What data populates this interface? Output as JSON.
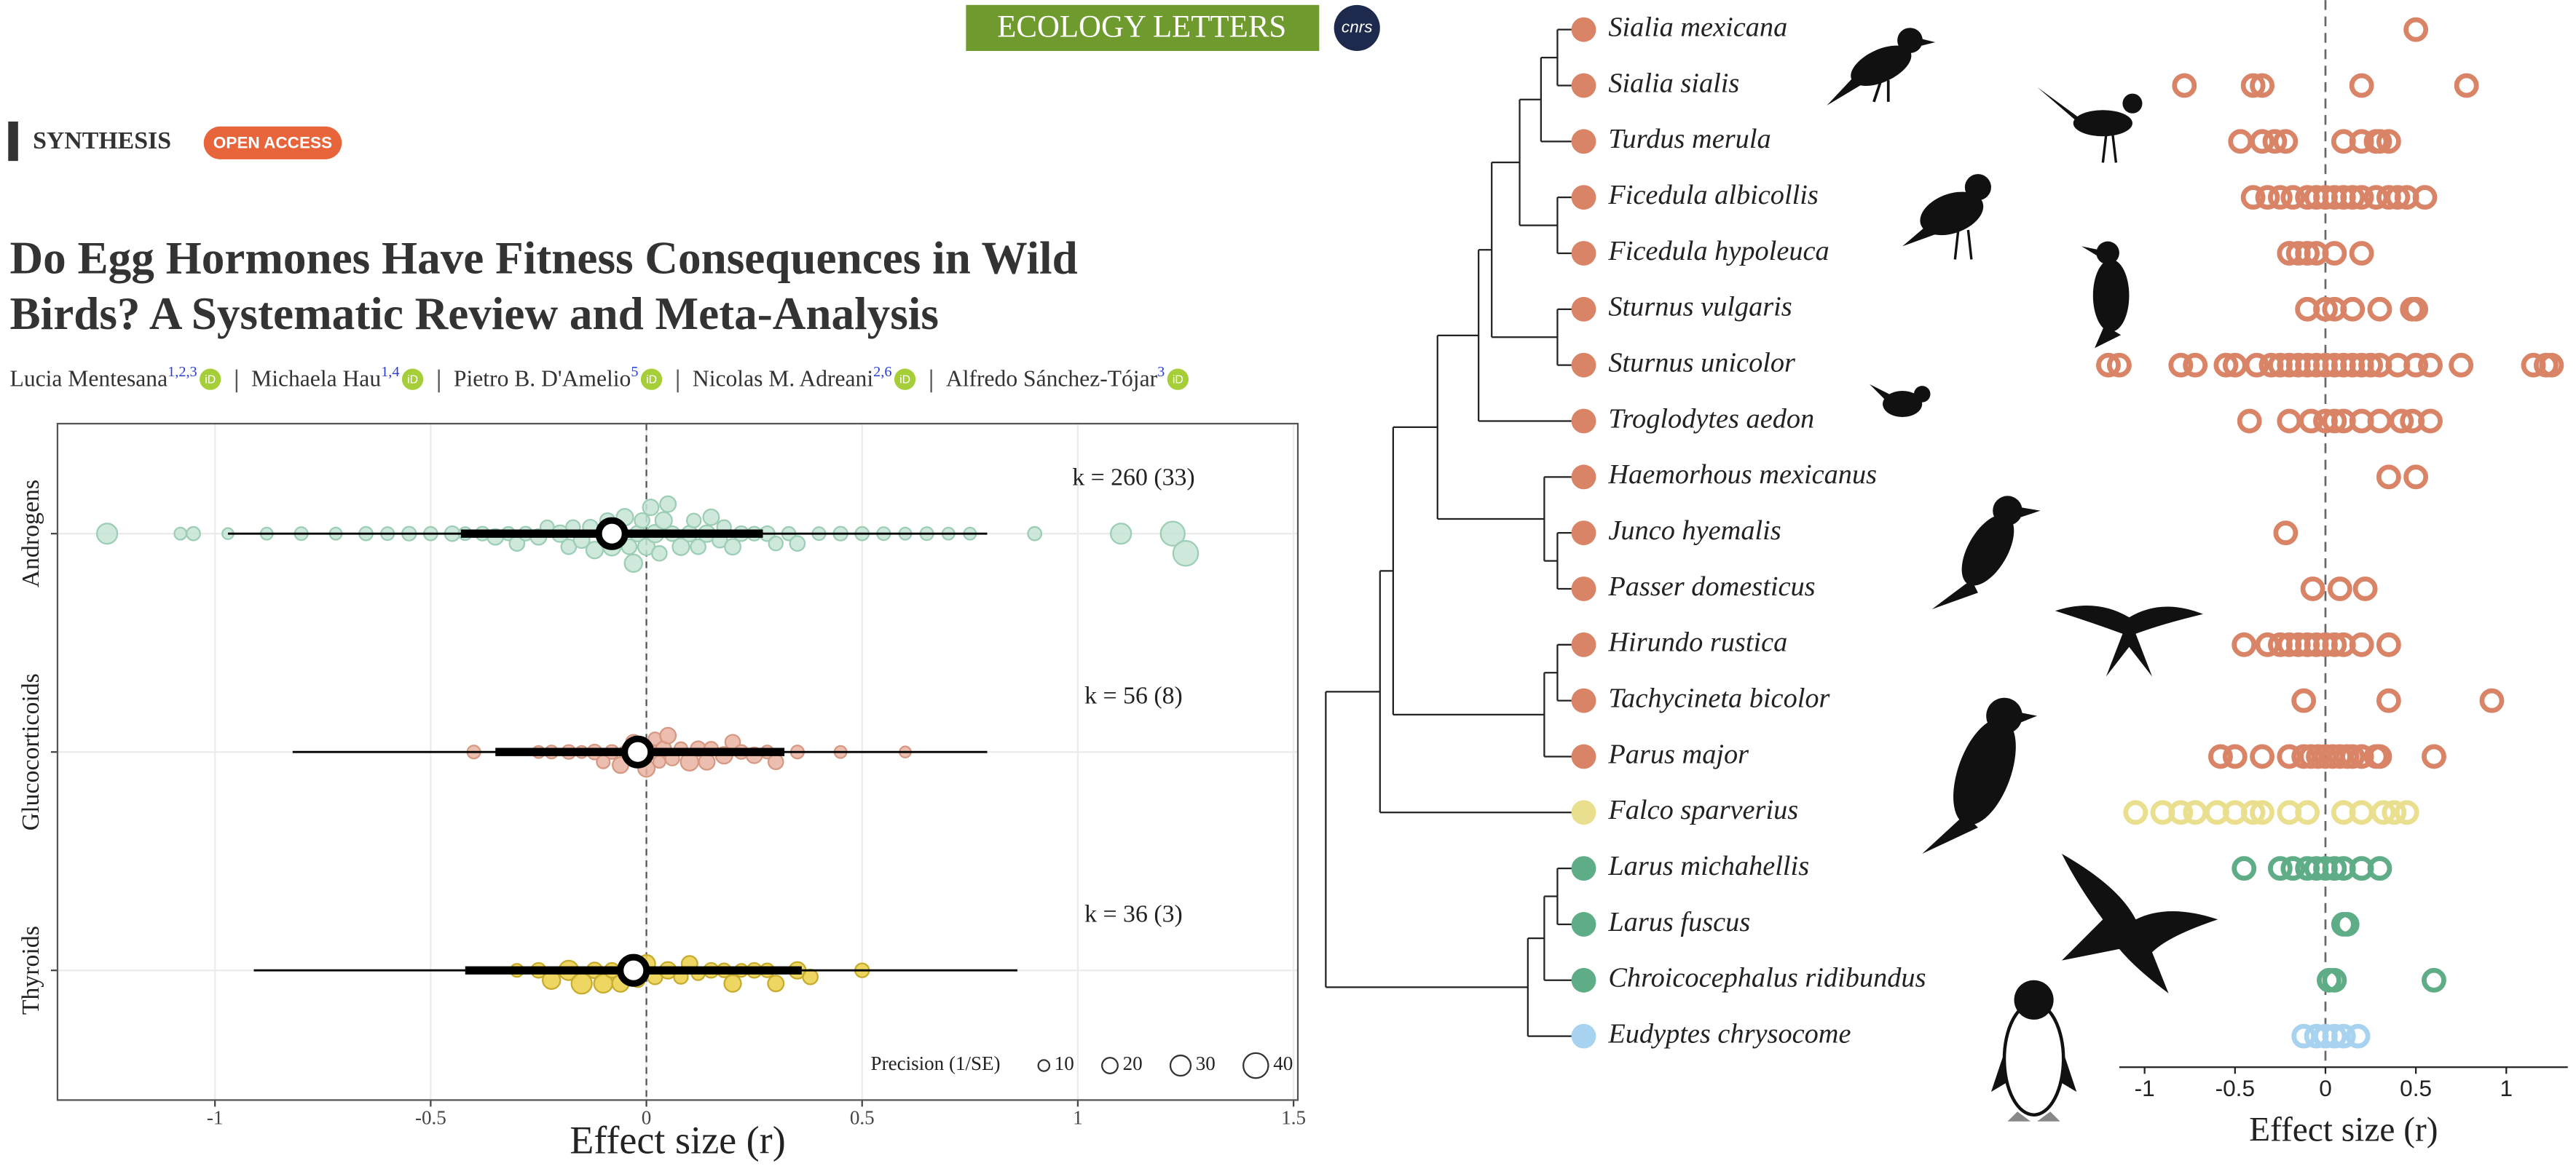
{
  "header": {
    "journal": "ECOLOGY LETTERS",
    "publisher": "cnrs",
    "section": "SYNTHESIS",
    "badge": "OPEN ACCESS",
    "title_lines": [
      "Do Egg Hormones Have Fitness Consequences in Wild",
      "Birds? A Systematic Review and Meta-Analysis"
    ],
    "authors": [
      {
        "name": "Lucia Mentesana",
        "affil": "1,2,3"
      },
      {
        "name": "Michaela Hau",
        "affil": "1,4"
      },
      {
        "name": "Pietro B. D'Amelio",
        "affil": "5"
      },
      {
        "name": "Nicolas M. Adreani",
        "affil": "2,6"
      },
      {
        "name": "Alfredo Sánchez-Tójar",
        "affil": "3"
      }
    ],
    "orcid": "iD"
  },
  "chart_data": [
    {
      "type": "orchard",
      "xlabel": "Effect size (r)",
      "xlim": [
        -1.365,
        1.51
      ],
      "xticks": [
        -1,
        -0.5,
        0,
        0.5,
        1,
        1.5
      ],
      "grid": true,
      "groups": [
        {
          "name": "Androgens",
          "color": "#c6e5d5",
          "stroke": "#9ccdb5",
          "k_label": "k = 260 (33)",
          "mean": -0.08,
          "ci": [
            -0.43,
            0.27
          ],
          "pi": [
            -0.97,
            0.79
          ],
          "x": [
            -1.25,
            -1.08,
            -1.05,
            -0.97,
            -0.88,
            -0.8,
            -0.72,
            -0.65,
            -0.6,
            -0.55,
            -0.5,
            -0.45,
            -0.42,
            -0.38,
            -0.35,
            -0.32,
            -0.3,
            -0.28,
            -0.25,
            -0.23,
            -0.2,
            -0.18,
            -0.17,
            -0.15,
            -0.13,
            -0.12,
            -0.1,
            -0.09,
            -0.08,
            -0.06,
            -0.05,
            -0.04,
            -0.03,
            -0.02,
            -0.01,
            0,
            0.01,
            0.02,
            0.03,
            0.04,
            0.05,
            0.06,
            0.08,
            0.1,
            0.11,
            0.12,
            0.14,
            0.15,
            0.17,
            0.18,
            0.2,
            0.22,
            0.25,
            0.28,
            0.3,
            0.33,
            0.35,
            0.4,
            0.45,
            0.5,
            0.55,
            0.6,
            0.65,
            0.7,
            0.75,
            0.9,
            1.1,
            1.22,
            1.25
          ],
          "precision": [
            30,
            12,
            15,
            10,
            12,
            14,
            12,
            15,
            14,
            16,
            15,
            18,
            14,
            16,
            20,
            15,
            18,
            16,
            20,
            15,
            22,
            18,
            16,
            20,
            18,
            22,
            20,
            18,
            24,
            20,
            22,
            18,
            24,
            20,
            18,
            22,
            20,
            24,
            18,
            22,
            20,
            18,
            22,
            20,
            16,
            18,
            22,
            20,
            18,
            16,
            20,
            18,
            16,
            18,
            16,
            15,
            18,
            14,
            16,
            15,
            14,
            12,
            14,
            12,
            12,
            15,
            30,
            38,
            40
          ]
        },
        {
          "name": "Glucocorticoids",
          "color": "#e9b3a2",
          "stroke": "#d69883",
          "k_label": "k = 56 (8)",
          "mean": -0.02,
          "ci": [
            -0.35,
            0.32
          ],
          "pi": [
            -0.82,
            0.79
          ],
          "x": [
            -0.4,
            -0.25,
            -0.22,
            -0.18,
            -0.15,
            -0.12,
            -0.1,
            -0.08,
            -0.06,
            -0.05,
            -0.03,
            -0.02,
            0,
            0.01,
            0.02,
            0.03,
            0.04,
            0.05,
            0.06,
            0.08,
            0.1,
            0.12,
            0.14,
            0.15,
            0.18,
            0.2,
            0.22,
            0.25,
            0.28,
            0.3,
            0.35,
            0.45,
            0.6
          ],
          "precision": [
            14,
            12,
            14,
            16,
            12,
            18,
            14,
            16,
            20,
            12,
            18,
            14,
            22,
            16,
            14,
            12,
            18,
            20,
            16,
            14,
            24,
            18,
            20,
            16,
            22,
            18,
            16,
            20,
            14,
            18,
            14,
            12,
            10
          ]
        },
        {
          "name": "Thyroids",
          "color": "#ead047",
          "stroke": "#c7ab2c",
          "k_label": "k = 36 (3)",
          "mean": -0.03,
          "ci": [
            -0.42,
            0.36
          ],
          "pi": [
            -0.91,
            0.86
          ],
          "x": [
            -0.3,
            -0.25,
            -0.22,
            -0.18,
            -0.15,
            -0.12,
            -0.1,
            -0.08,
            -0.06,
            -0.04,
            -0.02,
            0,
            0.02,
            0.05,
            0.08,
            0.1,
            0.12,
            0.15,
            0.18,
            0.2,
            0.22,
            0.25,
            0.28,
            0.3,
            0.35,
            0.38,
            0.5
          ],
          "precision": [
            14,
            18,
            24,
            28,
            30,
            20,
            26,
            18,
            22,
            30,
            16,
            24,
            18,
            22,
            16,
            20,
            14,
            18,
            16,
            22,
            14,
            18,
            16,
            20,
            22,
            18,
            16
          ]
        }
      ],
      "legend": {
        "title": "Precision (1/SE)",
        "sizes": [
          10,
          20,
          30,
          40
        ]
      }
    },
    {
      "type": "species_forest",
      "xlabel": "Effect size (r)",
      "xlim": [
        -1.14,
        1.34
      ],
      "xticks": [
        -1,
        -0.5,
        0,
        0.5,
        1
      ],
      "species": [
        {
          "name": "Sialia mexicana",
          "color": "#d98466",
          "values": [
            0.5
          ]
        },
        {
          "name": "Sialia sialis",
          "color": "#d98466",
          "values": [
            -0.78,
            -0.4,
            -0.35,
            0.2,
            0.78
          ]
        },
        {
          "name": "Turdus merula",
          "color": "#d98466",
          "values": [
            -0.47,
            -0.35,
            -0.28,
            -0.22,
            0.1,
            0.2,
            0.28,
            0.3,
            0.35
          ]
        },
        {
          "name": "Ficedula albicollis",
          "color": "#d98466",
          "values": [
            -0.4,
            -0.32,
            -0.25,
            -0.18,
            -0.1,
            -0.05,
            0,
            0.05,
            0.1,
            0.15,
            0.2,
            0.28,
            0.35,
            0.4,
            0.45,
            0.55
          ]
        },
        {
          "name": "Ficedula hypoleuca",
          "color": "#d98466",
          "values": [
            -0.2,
            -0.15,
            -0.1,
            -0.05,
            0.05,
            0.2
          ]
        },
        {
          "name": "Sturnus vulgaris",
          "color": "#d98466",
          "values": [
            -0.1,
            0,
            0.05,
            0.15,
            0.3,
            0.48,
            0.5
          ]
        },
        {
          "name": "Sturnus unicolor",
          "color": "#d98466",
          "values": [
            -1.2,
            -1.14,
            -0.8,
            -0.72,
            -0.55,
            -0.5,
            -0.38,
            -0.3,
            -0.25,
            -0.2,
            -0.15,
            -0.1,
            -0.05,
            0,
            0.05,
            0.1,
            0.15,
            0.2,
            0.25,
            0.3,
            0.4,
            0.5,
            0.58,
            0.75,
            1.15,
            1.22,
            1.25
          ]
        },
        {
          "name": "Troglodytes aedon",
          "color": "#d98466",
          "values": [
            -0.42,
            -0.2,
            -0.08,
            0,
            0.05,
            0.1,
            0.2,
            0.3,
            0.42,
            0.48,
            0.58
          ]
        },
        {
          "name": "Haemorhous mexicanus",
          "color": "#d98466",
          "values": [
            0.35,
            0.5
          ]
        },
        {
          "name": "Junco hyemalis",
          "color": "#d98466",
          "values": [
            -0.22
          ]
        },
        {
          "name": "Passer domesticus",
          "color": "#d98466",
          "values": [
            -0.07,
            0.08,
            0.22
          ]
        },
        {
          "name": "Hirundo rustica",
          "color": "#d98466",
          "values": [
            -0.45,
            -0.32,
            -0.25,
            -0.2,
            -0.15,
            -0.1,
            -0.05,
            0,
            0.05,
            0.1,
            0.2,
            0.35
          ]
        },
        {
          "name": "Tachycineta bicolor",
          "color": "#d98466",
          "values": [
            -0.12,
            0.35,
            0.92
          ]
        },
        {
          "name": "Parus major",
          "color": "#d98466",
          "values": [
            -0.58,
            -0.5,
            -0.35,
            -0.2,
            -0.12,
            -0.08,
            -0.04,
            0,
            0.04,
            0.08,
            0.12,
            0.15,
            0.2,
            0.28,
            0.3,
            0.6
          ]
        },
        {
          "name": "Falco sparverius",
          "color": "#e9df8e",
          "values": [
            -1.05,
            -0.9,
            -0.8,
            -0.72,
            -0.6,
            -0.5,
            -0.4,
            -0.35,
            -0.2,
            -0.1,
            0.1,
            0.2,
            0.32,
            0.38,
            0.45
          ]
        },
        {
          "name": "Larus michahellis",
          "color": "#5fad87",
          "values": [
            -0.45,
            -0.25,
            -0.18,
            -0.1,
            -0.05,
            0,
            0.05,
            0.1,
            0.2,
            0.3
          ]
        },
        {
          "name": "Larus fuscus",
          "color": "#5fad87",
          "values": [
            0.1,
            0.12
          ]
        },
        {
          "name": "Chroicocephalus ridibundus",
          "color": "#5fad87",
          "values": [
            0.02,
            0.05,
            0.6
          ]
        },
        {
          "name": "Eudyptes chrysocome",
          "color": "#a8d3f0",
          "values": [
            -0.12,
            -0.05,
            0,
            0.05,
            0.1,
            0.18
          ]
        }
      ]
    }
  ]
}
